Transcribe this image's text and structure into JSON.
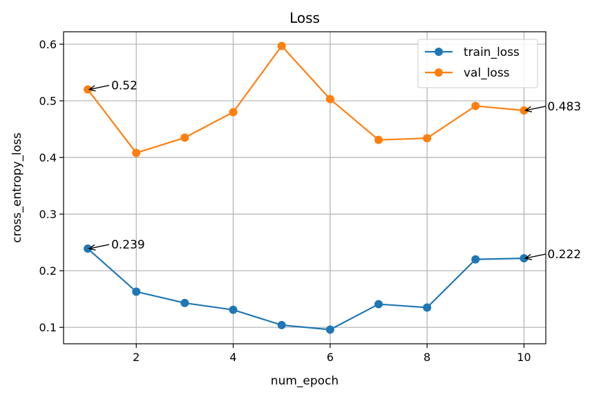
{
  "chart_data": {
    "type": "line",
    "title": "Loss",
    "xlabel": "num_epoch",
    "ylabel": "cross_entropy_loss",
    "x": [
      1,
      2,
      3,
      4,
      5,
      6,
      7,
      8,
      9,
      10
    ],
    "xlim": [
      0.5,
      10.45
    ],
    "ylim": [
      0.071,
      0.622
    ],
    "xticks": [
      2,
      4,
      6,
      8,
      10
    ],
    "yticks": [
      0.1,
      0.2,
      0.3,
      0.4,
      0.5,
      0.6
    ],
    "ytick_labels": [
      "0.1",
      "0.2",
      "0.3",
      "0.4",
      "0.5",
      "0.6"
    ],
    "grid": true,
    "legend_position": "top-right",
    "series": [
      {
        "name": "train_loss",
        "color": "#1f77b4",
        "values": [
          0.239,
          0.163,
          0.143,
          0.131,
          0.104,
          0.096,
          0.141,
          0.135,
          0.22,
          0.222
        ]
      },
      {
        "name": "val_loss",
        "color": "#ff7f0e",
        "values": [
          0.52,
          0.408,
          0.435,
          0.48,
          0.597,
          0.503,
          0.431,
          0.434,
          0.491,
          0.483
        ]
      }
    ],
    "annotations": [
      {
        "text": "0.52",
        "x": 1,
        "y": 0.52
      },
      {
        "text": "0.483",
        "x": 10,
        "y": 0.483
      },
      {
        "text": "0.239",
        "x": 1,
        "y": 0.239
      },
      {
        "text": "0.222",
        "x": 10,
        "y": 0.222
      }
    ]
  }
}
